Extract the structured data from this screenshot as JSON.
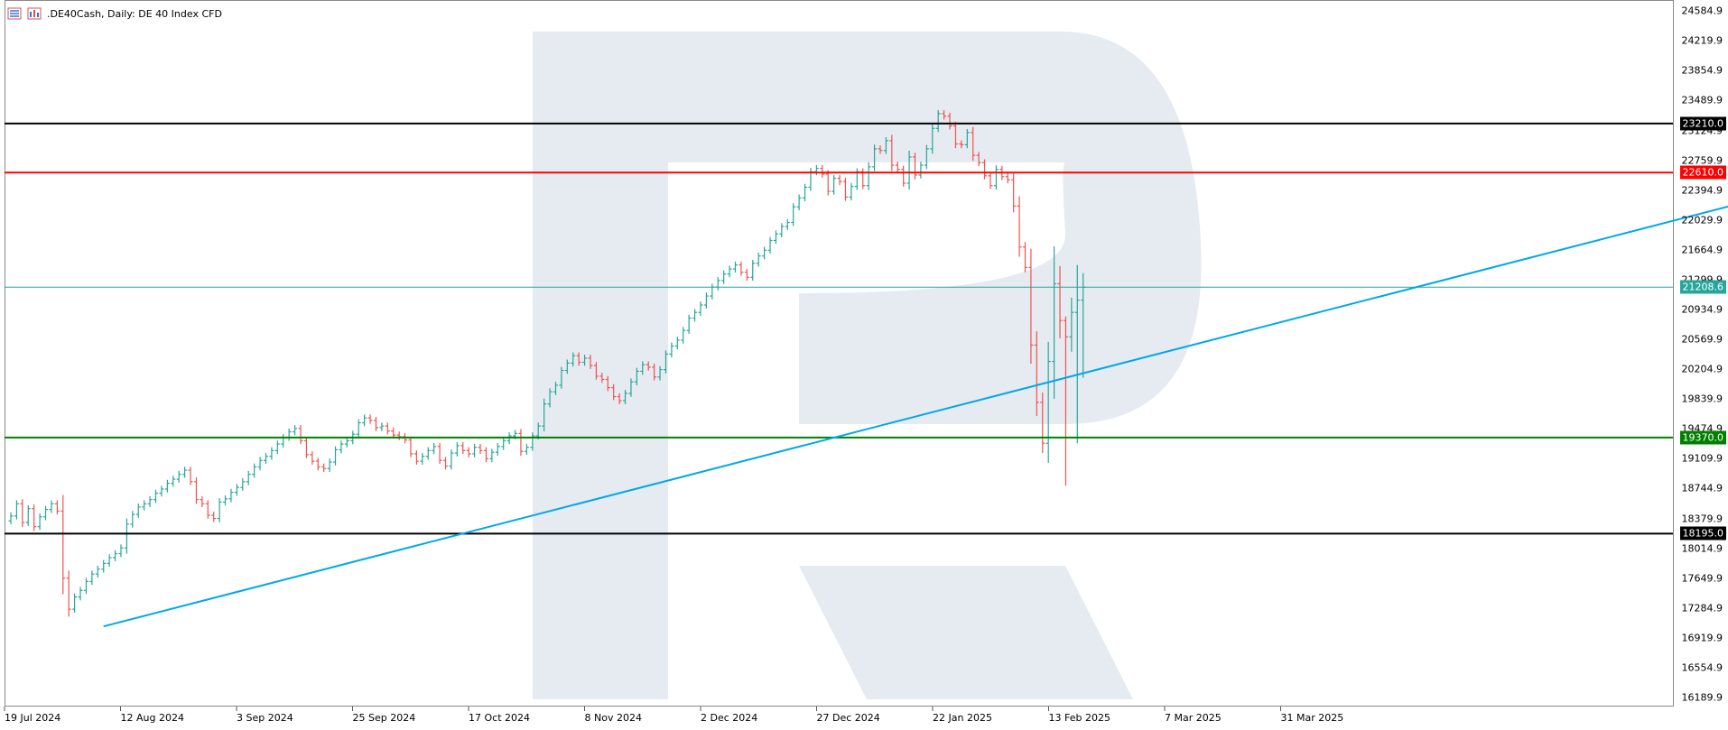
{
  "header": {
    "title": ".DE40Cash, Daily:  DE 40 Index CFD",
    "icons": [
      "bars-view-icon",
      "chart-type-icon"
    ]
  },
  "chart_data": {
    "type": "ohlc",
    "symbol": ".DE40Cash",
    "timeframe": "Daily",
    "description": "DE 40 Index CFD",
    "y_ticks": [
      "24584.9",
      "24219.9",
      "23854.9",
      "23489.9",
      "23124.9",
      "22759.9",
      "22394.9",
      "22029.9",
      "21664.9",
      "21299.9",
      "20934.9",
      "20569.9",
      "20204.9",
      "19839.9",
      "19474.9",
      "19109.9",
      "18744.9",
      "18379.9",
      "18014.9",
      "17649.9",
      "17284.9",
      "16919.9",
      "16554.9",
      "16189.9"
    ],
    "ylim": [
      16080,
      24720
    ],
    "x_ticks": [
      "19 Jul 2024",
      "12 Aug 2024",
      "3 Sep 2024",
      "25 Sep 2024",
      "17 Oct 2024",
      "8 Nov 2024",
      "2 Dec 2024",
      "27 Dec 2024",
      "22 Jan 2025",
      "13 Feb 2025",
      "7 Mar 2025",
      "31 Mar 2025"
    ],
    "levels": [
      {
        "value": 23210.0,
        "label": "23210.0",
        "color": "#000000"
      },
      {
        "value": 22610.0,
        "label": "22610.0",
        "color": "#ff0000"
      },
      {
        "value": 19370.0,
        "label": "19370.0",
        "color": "#008000"
      },
      {
        "value": 18195.0,
        "label": "18195.0",
        "color": "#000000"
      }
    ],
    "current_price": {
      "value": 21208.6,
      "label": "21208.6",
      "color": "#26a69a"
    },
    "trendline": {
      "start": {
        "bar": 16,
        "value": 17060
      },
      "end": {
        "bar": 337,
        "value": 22940
      },
      "color": "#00a8e8"
    },
    "up_color": "#26a69a",
    "down_color": "#ef5350",
    "closes": [
      18410,
      18560,
      18330,
      18500,
      18280,
      18400,
      18490,
      18560,
      18470,
      17650,
      17270,
      17420,
      17500,
      17610,
      17700,
      17760,
      17830,
      17900,
      17950,
      18020,
      18310,
      18430,
      18520,
      18560,
      18610,
      18690,
      18740,
      18810,
      18860,
      18920,
      18970,
      18830,
      18610,
      18560,
      18420,
      18380,
      18580,
      18620,
      18700,
      18760,
      18830,
      18920,
      19010,
      19090,
      19140,
      19210,
      19290,
      19370,
      19440,
      19480,
      19330,
      19160,
      19080,
      19010,
      18990,
      19070,
      19220,
      19290,
      19330,
      19410,
      19550,
      19610,
      19580,
      19490,
      19510,
      19450,
      19400,
      19380,
      19340,
      19170,
      19080,
      19140,
      19210,
      19260,
      19090,
      19020,
      19180,
      19270,
      19210,
      19170,
      19250,
      19210,
      19110,
      19190,
      19260,
      19330,
      19390,
      19420,
      19200,
      19250,
      19390,
      19510,
      19780,
      19930,
      20010,
      20190,
      20280,
      20370,
      20290,
      20340,
      20250,
      20120,
      20080,
      19980,
      19870,
      19820,
      19910,
      20050,
      20180,
      20260,
      20230,
      20110,
      20200,
      20390,
      20490,
      20560,
      20680,
      20830,
      20900,
      20990,
      21100,
      21210,
      21290,
      21370,
      21430,
      21480,
      21390,
      21330,
      21500,
      21590,
      21660,
      21780,
      21860,
      21950,
      22000,
      22190,
      22300,
      22430,
      22620,
      22660,
      22590,
      22380,
      22540,
      22500,
      22310,
      22440,
      22620,
      22450,
      22680,
      22900,
      22880,
      23000,
      22700,
      22650,
      22480,
      22800,
      22580,
      22700,
      22900,
      23150,
      23330,
      23300,
      23180,
      22960,
      22950,
      23100,
      22820,
      22730,
      22570,
      22450,
      22650,
      22560,
      22520,
      22200,
      21700,
      21450,
      20500,
      19800,
      19300,
      20300,
      21250,
      20800,
      20600,
      20900,
      21050,
      21208
    ]
  }
}
